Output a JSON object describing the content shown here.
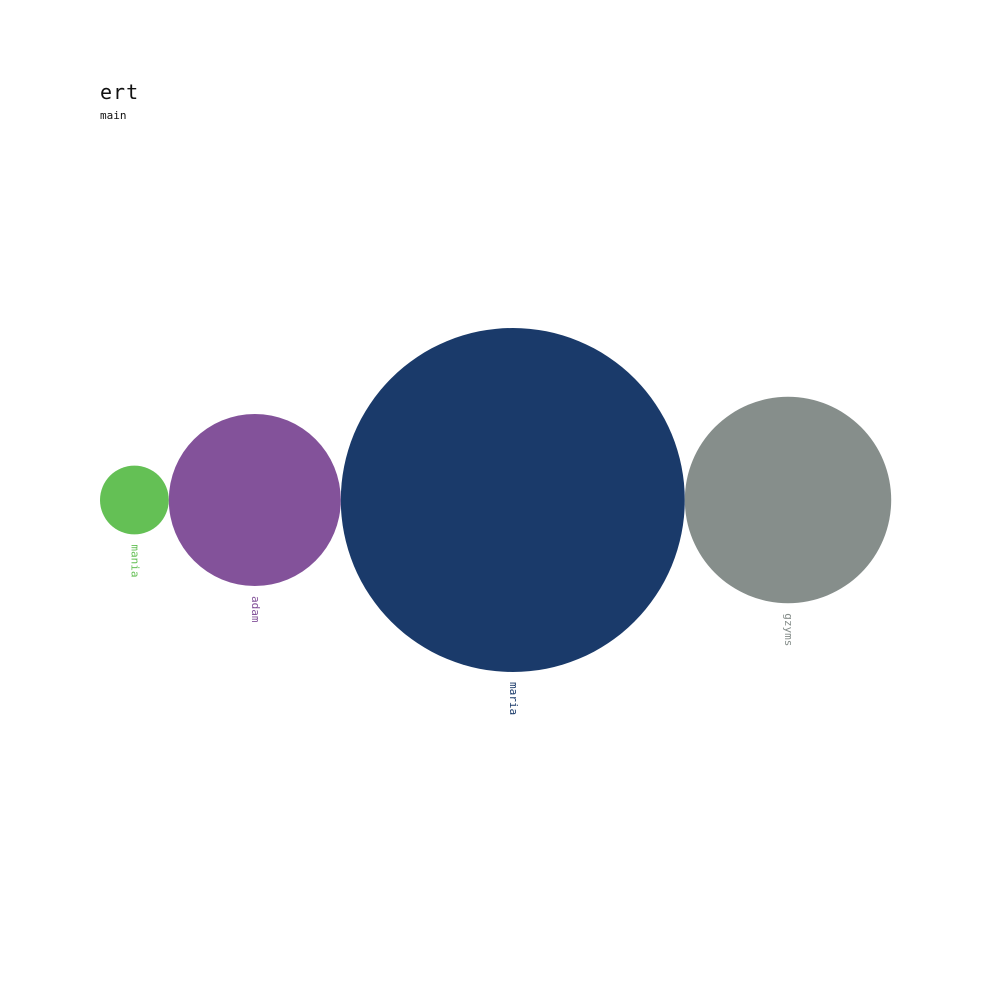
{
  "chart_data": {
    "type": "bubble",
    "title": "ert",
    "subtitle": "main",
    "values_are_relative_sizes": true,
    "bubbles": [
      {
        "label": "mania",
        "value": 4,
        "color": "#64c055"
      },
      {
        "label": "adam",
        "value": 25,
        "color": "#83529a"
      },
      {
        "label": "maria",
        "value": 100,
        "color": "#1a3a6a"
      },
      {
        "label": "gzyms",
        "value": 36,
        "color": "#868e8b"
      }
    ]
  }
}
